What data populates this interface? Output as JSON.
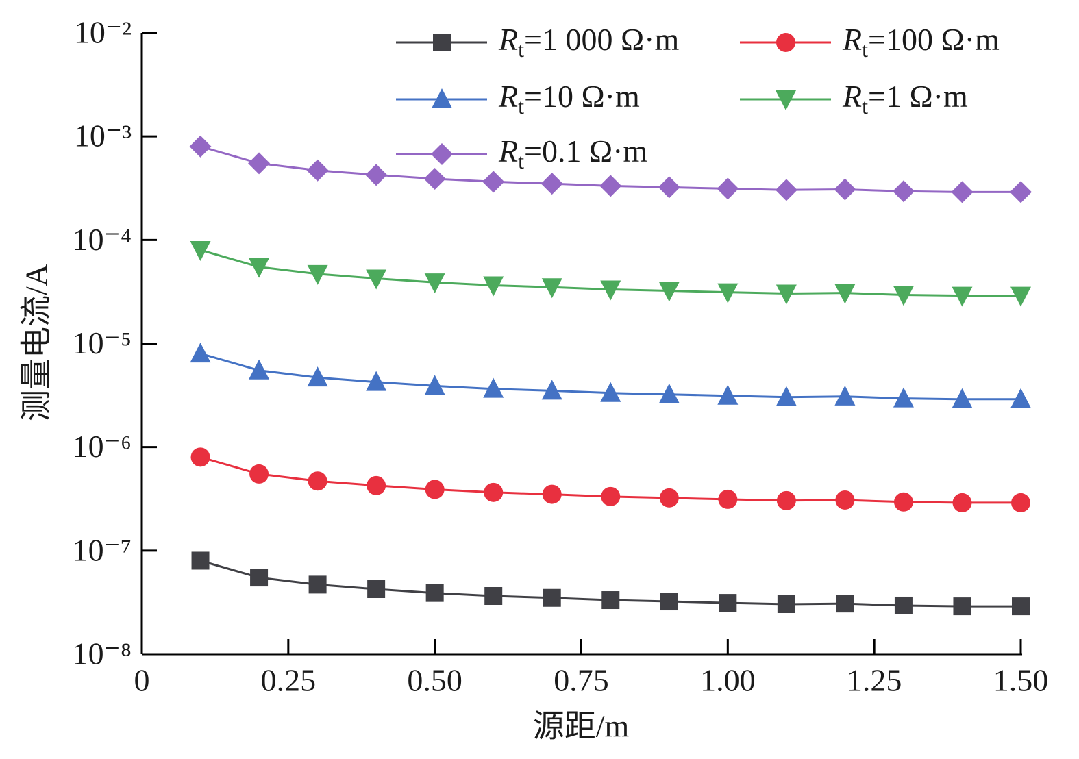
{
  "chart_data": {
    "type": "line",
    "x_label": "源距/m",
    "y_label": "测量电流/A",
    "yscale": "log",
    "xlim": [
      0,
      1.5
    ],
    "xticks": [
      0,
      0.25,
      {
        "value": 0.5,
        "label": "0.50"
      },
      0.75,
      {
        "value": 1,
        "label": "1.00"
      },
      1.25,
      {
        "value": 1.5,
        "label": "1.50"
      }
    ],
    "ylim": [
      1e-08,
      0.01
    ],
    "yticks": [
      {
        "value": 1e-08,
        "label": "10⁻⁸"
      },
      {
        "value": 1e-07,
        "label": "10⁻⁷"
      },
      {
        "value": 1e-06,
        "label": "10⁻⁶"
      },
      {
        "value": 1e-05,
        "label": "10⁻⁵"
      },
      {
        "value": 0.0001,
        "label": "10⁻⁴"
      },
      {
        "value": 0.001,
        "label": "10⁻³"
      },
      {
        "value": 0.01,
        "label": "10⁻²"
      }
    ],
    "x": [
      0.1,
      0.2,
      0.3,
      0.4,
      0.5,
      0.6,
      0.7,
      0.8,
      0.9,
      1.0,
      1.1,
      1.2,
      1.3,
      1.4,
      1.5
    ],
    "series": [
      {
        "name": "Rt=1 000 Ω·m",
        "color": "#404045",
        "marker": "square",
        "values": [
          8e-08,
          5.5e-08,
          4.7e-08,
          4.25e-08,
          3.9e-08,
          3.65e-08,
          3.5e-08,
          3.33e-08,
          3.23e-08,
          3.13e-08,
          3.04e-08,
          3.08e-08,
          2.95e-08,
          2.9e-08,
          2.9e-08
        ]
      },
      {
        "name": "Rt=100 Ω·m",
        "color": "#e8303f",
        "marker": "circle",
        "values": [
          8e-07,
          5.5e-07,
          4.7e-07,
          4.25e-07,
          3.9e-07,
          3.65e-07,
          3.5e-07,
          3.33e-07,
          3.23e-07,
          3.13e-07,
          3.04e-07,
          3.08e-07,
          2.95e-07,
          2.9e-07,
          2.9e-07
        ]
      },
      {
        "name": "Rt=10 Ω·m",
        "color": "#4472c4",
        "marker": "triangle",
        "values": [
          8e-06,
          5.5e-06,
          4.7e-06,
          4.25e-06,
          3.9e-06,
          3.65e-06,
          3.5e-06,
          3.33e-06,
          3.23e-06,
          3.13e-06,
          3.04e-06,
          3.08e-06,
          2.95e-06,
          2.9e-06,
          2.9e-06
        ]
      },
      {
        "name": "Rt=1 Ω·m",
        "color": "#4caa5c",
        "marker": "triangle-down",
        "values": [
          8e-05,
          5.5e-05,
          4.7e-05,
          4.25e-05,
          3.9e-05,
          3.65e-05,
          3.5e-05,
          3.33e-05,
          3.23e-05,
          3.13e-05,
          3.04e-05,
          3.08e-05,
          2.95e-05,
          2.9e-05,
          2.9e-05
        ]
      },
      {
        "name": "Rt=0.1 Ω·m",
        "color": "#9467c4",
        "marker": "diamond",
        "values": [
          0.0008,
          0.00055,
          0.00047,
          0.000425,
          0.00039,
          0.000365,
          0.00035,
          0.000333,
          0.000323,
          0.000313,
          0.000304,
          0.000308,
          0.000295,
          0.00029,
          0.00029
        ]
      }
    ]
  }
}
